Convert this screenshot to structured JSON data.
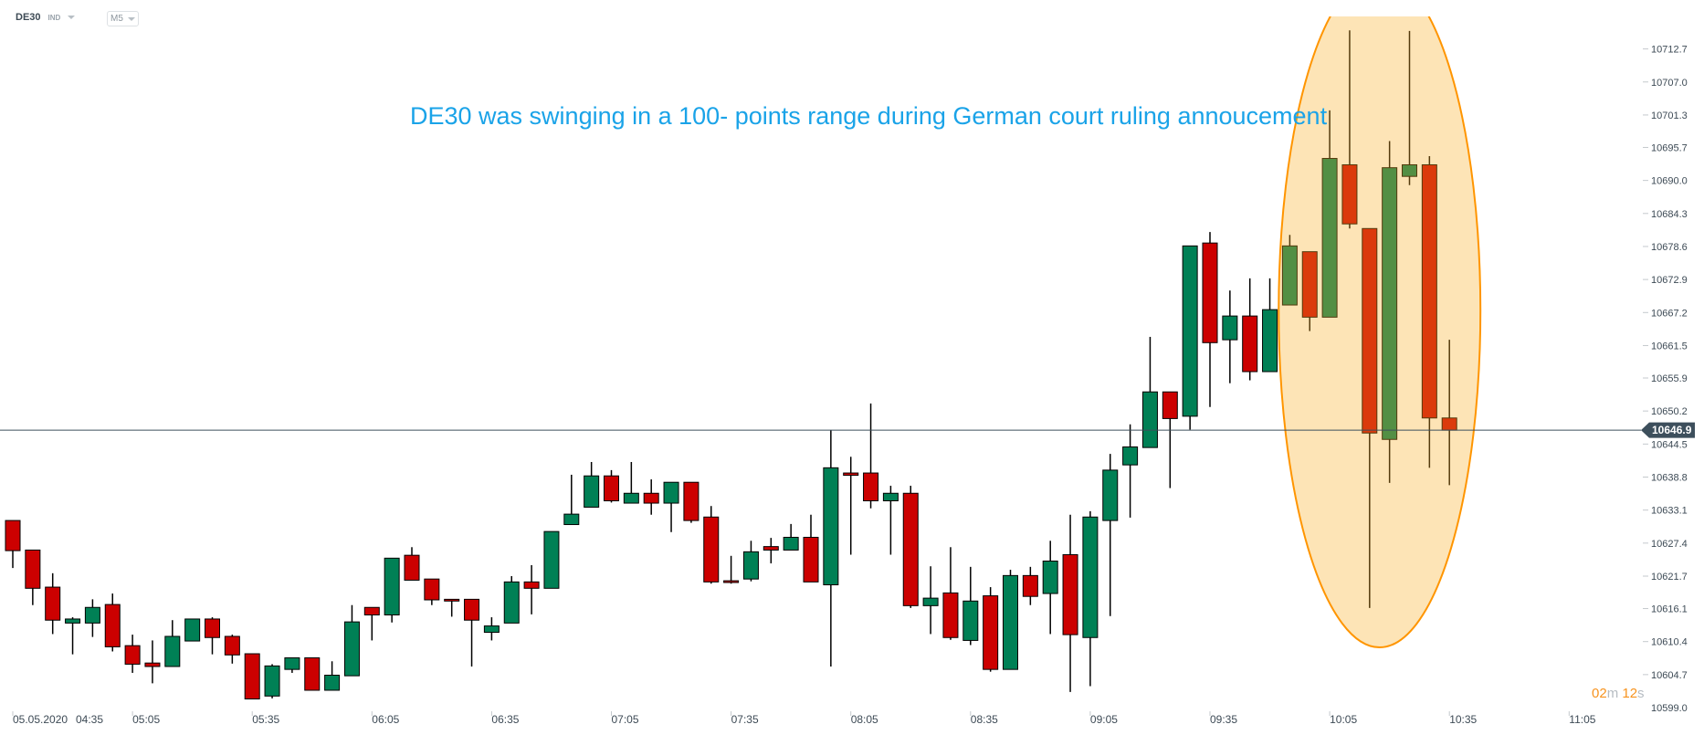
{
  "header": {
    "symbol": "DE30",
    "market": "IND",
    "timeframe": "M5"
  },
  "annotation": "DE30 was swinging in a 100- points range during German court ruling annoucement",
  "countdown": {
    "minutes": "02",
    "minutes_unit": "m",
    "seconds": "12",
    "seconds_unit": "s"
  },
  "current_price": "10646.9",
  "colors": {
    "up": "#008055",
    "down": "#cc0000",
    "highlight_fill": "rgba(249,173,37,0.333)",
    "highlight_stroke": "#ff9500",
    "price_line": "#3d4f5c",
    "annotation": "#1aa3e8"
  },
  "chart_data": {
    "type": "candlestick",
    "title": "DE30 M5",
    "date_label": "05.05.2020",
    "y_ticks": [
      "10712.7",
      "10707.0",
      "10701.3",
      "10695.7",
      "10690.0",
      "10684.3",
      "10678.6",
      "10672.9",
      "10667.2",
      "10661.5",
      "10655.9",
      "10650.2",
      "10644.5",
      "10638.8",
      "10633.1",
      "10627.4",
      "10621.7",
      "10616.1",
      "10610.4",
      "10604.7",
      "10599.0"
    ],
    "x_ticks": [
      "04:35",
      "05:05",
      "05:35",
      "06:05",
      "06:35",
      "07:05",
      "07:35",
      "08:05",
      "08:35",
      "09:05",
      "09:35",
      "10:05",
      "10:35",
      "11:05"
    ],
    "ylim": [
      10599.0,
      10712.7
    ],
    "highlight_range": [
      "10:00",
      "10:35"
    ],
    "candles": [
      [
        "04:35",
        10631.3,
        10631.3,
        10623.1,
        10626.1
      ],
      [
        "04:40",
        10626.2,
        10626.2,
        10616.7,
        10619.6
      ],
      [
        "04:45",
        10619.8,
        10622.2,
        10611.7,
        10614.1
      ],
      [
        "04:50",
        10613.6,
        10614.6,
        10608.2,
        10614.3
      ],
      [
        "04:55",
        10613.6,
        10617.7,
        10611.2,
        10616.3
      ],
      [
        "05:00",
        10616.8,
        10618.7,
        10608.7,
        10609.5
      ],
      [
        "05:05",
        10609.7,
        10611.6,
        10605.0,
        10606.5
      ],
      [
        "05:10",
        10606.7,
        10610.6,
        10603.2,
        10606.1
      ],
      [
        "05:15",
        10606.1,
        10614.1,
        10606.1,
        10611.3
      ],
      [
        "05:20",
        10610.5,
        10614.3,
        10610.5,
        10614.3
      ],
      [
        "05:25",
        10614.3,
        10614.6,
        10608.2,
        10611.1
      ],
      [
        "05:30",
        10611.3,
        10611.6,
        10606.6,
        10608.1
      ],
      [
        "05:35",
        10608.3,
        10608.3,
        10600.5,
        10600.5
      ],
      [
        "05:40",
        10601.0,
        10606.5,
        10600.6,
        10606.2
      ],
      [
        "05:45",
        10605.6,
        10607.6,
        10605.0,
        10607.6
      ],
      [
        "05:50",
        10607.6,
        10607.6,
        10602.0,
        10602.0
      ],
      [
        "05:55",
        10602.0,
        10607.0,
        10602.0,
        10604.6
      ],
      [
        "06:00",
        10604.5,
        10616.7,
        10604.5,
        10613.8
      ],
      [
        "06:05",
        10616.3,
        10616.3,
        10610.6,
        10615.0
      ],
      [
        "06:10",
        10615.0,
        10624.8,
        10613.7,
        10624.8
      ],
      [
        "06:15",
        10625.3,
        10626.7,
        10621.0,
        10621.0
      ],
      [
        "06:20",
        10621.2,
        10621.2,
        10616.7,
        10617.6
      ],
      [
        "06:25",
        10617.7,
        10617.7,
        10614.7,
        10617.4
      ],
      [
        "06:30",
        10617.7,
        10617.7,
        10606.1,
        10614.1
      ],
      [
        "06:35",
        10612.0,
        10614.6,
        10610.6,
        10613.1
      ],
      [
        "06:40",
        10613.6,
        10621.7,
        10613.6,
        10620.7
      ],
      [
        "06:45",
        10620.7,
        10623.6,
        10615.1,
        10619.6
      ],
      [
        "06:50",
        10619.6,
        10629.4,
        10619.6,
        10629.4
      ],
      [
        "06:55",
        10630.6,
        10639.2,
        10630.6,
        10632.4
      ],
      [
        "07:00",
        10633.6,
        10641.4,
        10633.6,
        10639.0
      ],
      [
        "07:05",
        10639.0,
        10640.0,
        10634.4,
        10634.7
      ],
      [
        "07:10",
        10634.3,
        10641.4,
        10634.3,
        10636.0
      ],
      [
        "07:15",
        10636.0,
        10638.4,
        10632.3,
        10634.3
      ],
      [
        "07:20",
        10634.3,
        10637.9,
        10629.3,
        10637.9
      ],
      [
        "07:25",
        10637.9,
        10637.9,
        10630.9,
        10631.3
      ],
      [
        "07:30",
        10631.9,
        10633.8,
        10620.4,
        10620.7
      ],
      [
        "07:35",
        10620.9,
        10625.2,
        10620.4,
        10620.6
      ],
      [
        "07:40",
        10621.2,
        10627.8,
        10620.8,
        10625.9
      ],
      [
        "07:45",
        10626.8,
        10628.3,
        10623.9,
        10626.2
      ],
      [
        "07:50",
        10626.2,
        10630.7,
        10626.2,
        10628.4
      ],
      [
        "07:55",
        10628.4,
        10632.3,
        10620.7,
        10620.7
      ],
      [
        "08:00",
        10620.2,
        10646.9,
        10606.1,
        10640.4
      ],
      [
        "08:05",
        10639.5,
        10642.3,
        10625.4,
        10639.1
      ],
      [
        "08:10",
        10639.5,
        10651.5,
        10633.4,
        10634.7
      ],
      [
        "08:15",
        10634.7,
        10637.3,
        10625.4,
        10636.0
      ],
      [
        "08:20",
        10636.0,
        10637.3,
        10616.2,
        10616.6
      ],
      [
        "08:25",
        10616.6,
        10623.4,
        10611.7,
        10617.9
      ],
      [
        "08:30",
        10618.8,
        10626.7,
        10610.7,
        10611.1
      ],
      [
        "08:35",
        10610.6,
        10623.3,
        10609.8,
        10617.4
      ],
      [
        "08:40",
        10618.3,
        10619.8,
        10605.2,
        10605.6
      ],
      [
        "08:45",
        10605.6,
        10622.8,
        10605.6,
        10621.8
      ],
      [
        "08:50",
        10621.8,
        10623.3,
        10616.7,
        10618.2
      ],
      [
        "08:55",
        10618.7,
        10627.8,
        10611.7,
        10624.3
      ],
      [
        "09:00",
        10625.4,
        10632.3,
        10601.7,
        10611.6
      ],
      [
        "09:05",
        10611.1,
        10632.9,
        10602.7,
        10631.9
      ],
      [
        "09:10",
        10631.3,
        10642.8,
        10614.8,
        10640.0
      ],
      [
        "09:15",
        10640.9,
        10647.9,
        10631.8,
        10644.0
      ],
      [
        "09:20",
        10643.9,
        10663.0,
        10643.9,
        10653.5
      ],
      [
        "09:25",
        10653.5,
        10653.5,
        10636.9,
        10648.9
      ],
      [
        "09:30",
        10649.3,
        10678.7,
        10647.0,
        10678.7
      ],
      [
        "09:35",
        10679.2,
        10681.1,
        10650.9,
        10662.0
      ],
      [
        "09:40",
        10662.5,
        10671.0,
        10655.0,
        10666.6
      ],
      [
        "09:45",
        10666.6,
        10673.1,
        10655.5,
        10657.0
      ],
      [
        "09:50",
        10657.0,
        10673.1,
        10657.0,
        10667.7
      ],
      [
        "09:55",
        10668.5,
        10680.6,
        10668.5,
        10678.7
      ],
      [
        "10:00",
        10677.7,
        10677.7,
        10664.0,
        10666.4
      ],
      [
        "10:05",
        10666.4,
        10702.1,
        10666.4,
        10693.8
      ],
      [
        "10:10",
        10692.7,
        10715.9,
        10681.7,
        10682.5
      ],
      [
        "10:15",
        10681.7,
        10681.7,
        10616.2,
        10646.4
      ],
      [
        "10:20",
        10645.3,
        10696.8,
        10637.8,
        10692.2
      ],
      [
        "10:25",
        10690.7,
        10715.8,
        10689.2,
        10692.7
      ],
      [
        "10:30",
        10692.7,
        10694.2,
        10640.4,
        10649.0
      ],
      [
        "10:35",
        10649.0,
        10662.5,
        10637.4,
        10646.9
      ]
    ]
  }
}
